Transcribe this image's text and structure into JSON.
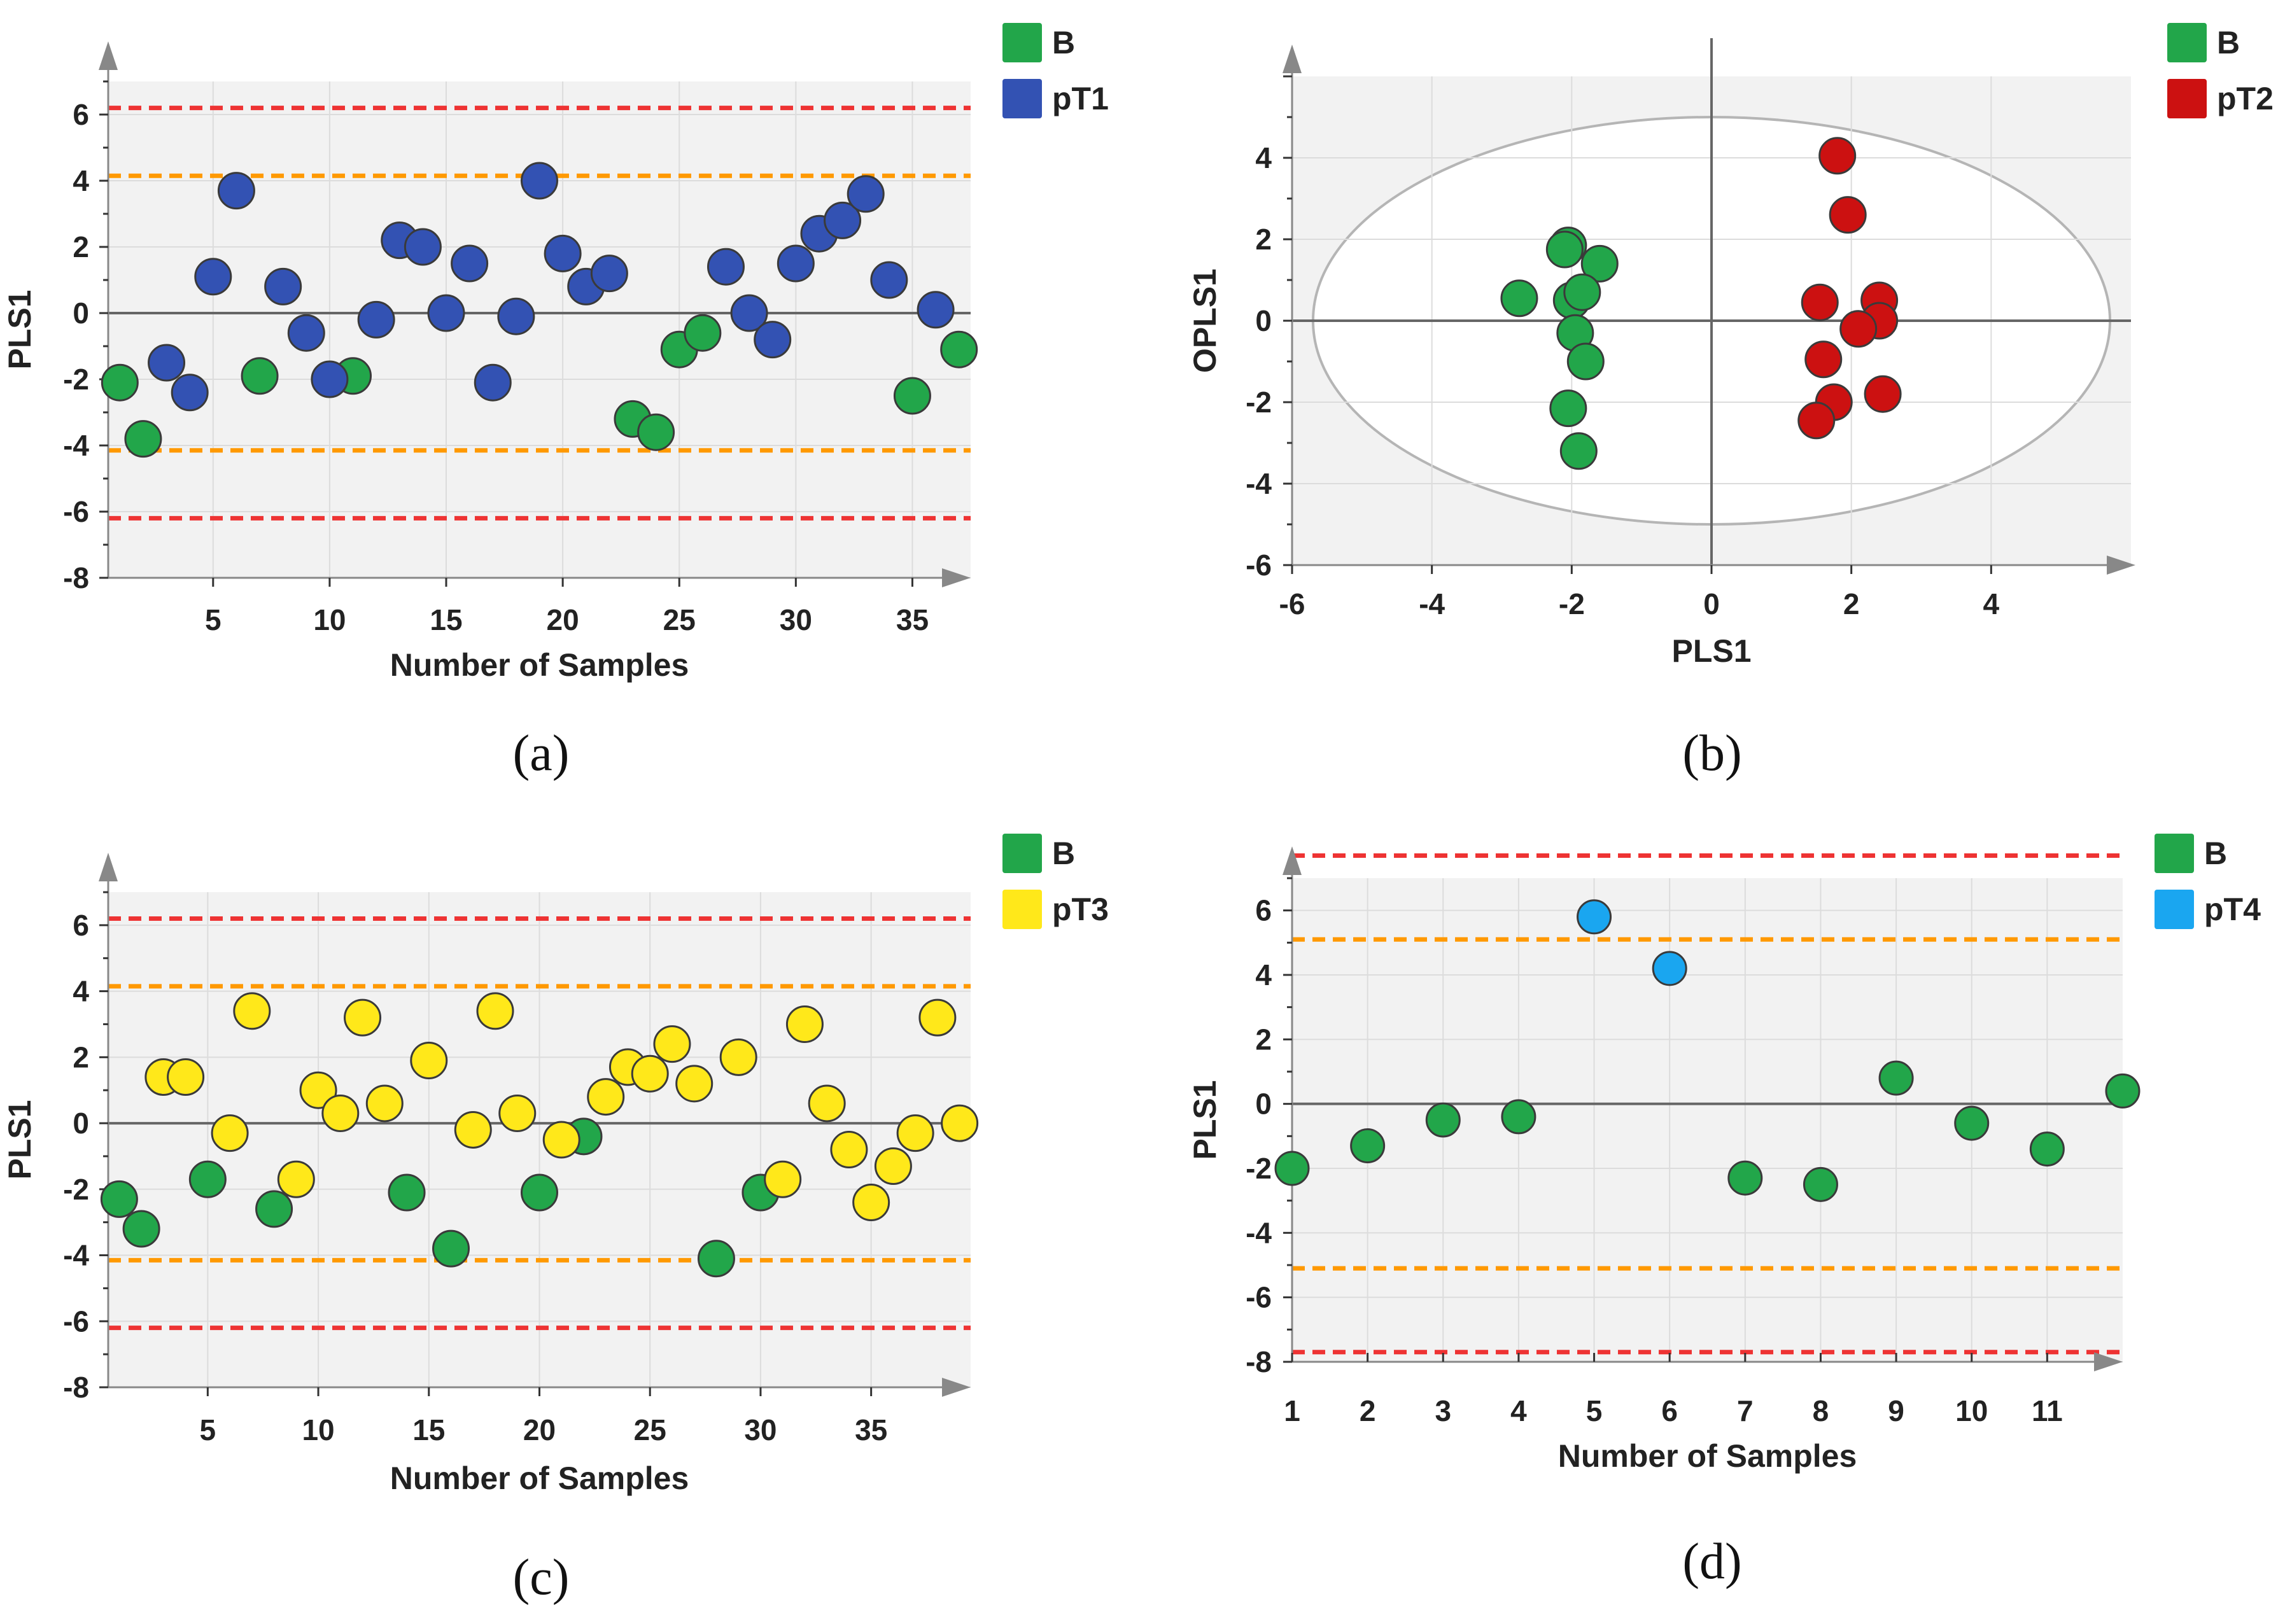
{
  "colors": {
    "B": "#22a64a",
    "pT1": "#3352b3",
    "pT2": "#cc1111",
    "pT3": "#ffe81a",
    "pT4": "#1aa6f0",
    "warning_limit": "#ff9900",
    "action_limit": "#ee3333",
    "plot_background": "#f2f2f2",
    "grid": "#dcdcdc"
  },
  "chart_data": [
    {
      "id": "a",
      "type": "scatter",
      "panel_label": "(a)",
      "xlabel": "Number of Samples",
      "ylabel": "PLS1",
      "xlim": [
        0.5,
        37.5
      ],
      "ylim": [
        -8,
        7
      ],
      "xticks": [
        5,
        10,
        15,
        20,
        25,
        30,
        35
      ],
      "yticks": [
        -8,
        -6,
        -4,
        -2,
        0,
        2,
        4,
        6
      ],
      "legend": [
        "B",
        "pT1"
      ],
      "limits": [
        {
          "kind": "warning",
          "value": 4.15
        },
        {
          "kind": "warning",
          "value": -4.15
        },
        {
          "kind": "action",
          "value": 6.2
        },
        {
          "kind": "action",
          "value": -6.2
        }
      ],
      "series": [
        {
          "name": "B",
          "color_key": "B",
          "x": [
            1,
            2,
            7,
            11,
            23,
            24,
            25,
            26,
            35,
            37
          ],
          "y": [
            -2.1,
            -3.8,
            -1.9,
            -1.9,
            -3.2,
            -3.6,
            -1.1,
            -0.6,
            -2.5,
            -1.1
          ]
        },
        {
          "name": "pT1",
          "color_key": "pT1",
          "x": [
            3,
            4,
            5,
            6,
            8,
            9,
            10,
            12,
            13,
            14,
            15,
            16,
            17,
            18,
            19,
            20,
            21,
            22,
            27,
            28,
            29,
            30,
            31,
            32,
            33,
            34,
            36
          ],
          "y": [
            -1.5,
            -2.4,
            1.1,
            3.7,
            0.8,
            -0.6,
            -2.0,
            -0.2,
            2.2,
            2.0,
            0.0,
            1.5,
            -2.1,
            -0.1,
            4.0,
            1.8,
            0.8,
            1.2,
            1.4,
            0.0,
            -0.8,
            1.5,
            2.4,
            2.8,
            3.6,
            1.0,
            0.1
          ]
        }
      ]
    },
    {
      "id": "b",
      "type": "scatter",
      "panel_label": "(b)",
      "xlabel": "PLS1",
      "ylabel": "OPLS1",
      "xlim": [
        -6,
        6
      ],
      "ylim": [
        -6,
        6
      ],
      "xticks": [
        -6,
        -4,
        -2,
        0,
        2,
        4
      ],
      "yticks": [
        -6,
        -4,
        -2,
        0,
        2,
        4
      ],
      "legend": [
        "B",
        "pT2"
      ],
      "ellipse": {
        "rx": 5.7,
        "ry": 5.0
      },
      "series": [
        {
          "name": "B",
          "color_key": "B",
          "x": [
            -2.75,
            -2.05,
            -2.1,
            -1.6,
            -2.0,
            -1.85,
            -1.95,
            -1.8,
            -2.05,
            -1.9
          ],
          "y": [
            0.55,
            1.85,
            1.75,
            1.4,
            0.5,
            0.7,
            -0.3,
            -1.0,
            -2.15,
            -3.2
          ]
        },
        {
          "name": "pT2",
          "color_key": "pT2",
          "x": [
            1.8,
            1.95,
            1.55,
            2.4,
            2.4,
            2.1,
            1.6,
            1.75,
            2.45,
            1.5
          ],
          "y": [
            4.05,
            2.6,
            0.45,
            0.5,
            0.0,
            -0.2,
            -0.95,
            -2.0,
            -1.8,
            -2.45
          ]
        }
      ]
    },
    {
      "id": "c",
      "type": "scatter",
      "panel_label": "(c)",
      "xlabel": "Number of Samples",
      "ylabel": "PLS1",
      "xlim": [
        0.5,
        39.5
      ],
      "ylim": [
        -8,
        7
      ],
      "xticks": [
        5,
        10,
        15,
        20,
        25,
        30,
        35
      ],
      "yticks": [
        -8,
        -6,
        -4,
        -2,
        0,
        2,
        4,
        6
      ],
      "legend": [
        "B",
        "pT3"
      ],
      "limits": [
        {
          "kind": "warning",
          "value": 4.15
        },
        {
          "kind": "warning",
          "value": -4.15
        },
        {
          "kind": "action",
          "value": 6.2
        },
        {
          "kind": "action",
          "value": -6.2
        }
      ],
      "series": [
        {
          "name": "B",
          "color_key": "B",
          "x": [
            1,
            2,
            5,
            8,
            14,
            16,
            20,
            22,
            28,
            30
          ],
          "y": [
            -2.3,
            -3.2,
            -1.7,
            -2.6,
            -2.1,
            -3.8,
            -2.1,
            -0.4,
            -4.1,
            -2.1
          ]
        },
        {
          "name": "pT3",
          "color_key": "pT3",
          "x": [
            3,
            4,
            6,
            7,
            9,
            10,
            11,
            12,
            13,
            15,
            17,
            18,
            19,
            21,
            23,
            24,
            25,
            26,
            27,
            29,
            31,
            32,
            33,
            34,
            35,
            36,
            37,
            38,
            39
          ],
          "y": [
            1.4,
            1.4,
            -0.3,
            3.4,
            -1.7,
            1.0,
            0.3,
            3.2,
            0.6,
            1.9,
            -0.2,
            3.4,
            0.3,
            -0.5,
            0.8,
            1.7,
            1.5,
            2.4,
            1.2,
            2.0,
            -1.7,
            3.0,
            0.6,
            -0.8,
            -2.4,
            -1.3,
            -0.3,
            3.2,
            0.0
          ]
        }
      ]
    },
    {
      "id": "d",
      "type": "scatter",
      "panel_label": "(d)",
      "xlabel": "Number of Samples",
      "ylabel": "PLS1",
      "xlim": [
        1,
        12
      ],
      "ylim": [
        -8,
        7
      ],
      "xticks": [
        1,
        2,
        3,
        4,
        5,
        6,
        7,
        8,
        9,
        10,
        11
      ],
      "yticks": [
        -8,
        -6,
        -4,
        -2,
        0,
        2,
        4,
        6
      ],
      "legend": [
        "B",
        "pT4"
      ],
      "limits": [
        {
          "kind": "warning",
          "value": 5.1
        },
        {
          "kind": "warning",
          "value": -5.1
        },
        {
          "kind": "action",
          "value": 7.7
        },
        {
          "kind": "action",
          "value": -7.7
        }
      ],
      "series": [
        {
          "name": "B",
          "color_key": "B",
          "x": [
            1,
            2,
            3,
            4,
            7,
            8,
            9,
            10,
            11,
            12
          ],
          "y": [
            -2.0,
            -1.3,
            -0.5,
            -0.4,
            -2.3,
            -2.5,
            0.8,
            -0.6,
            -1.4,
            0.4
          ]
        },
        {
          "name": "pT4",
          "color_key": "pT4",
          "x": [
            5,
            6
          ],
          "y": [
            5.8,
            4.2
          ]
        }
      ]
    }
  ]
}
